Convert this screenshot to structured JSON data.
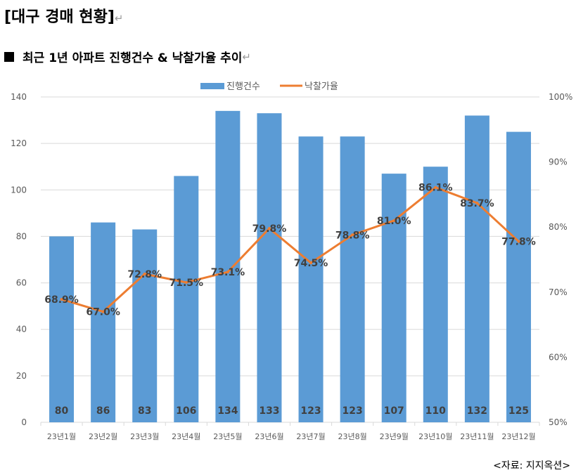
{
  "document": {
    "title": "[대구 경매 현황]",
    "title_mark": "↵",
    "heading": "최근 1년 아파트 진행건수 & 낙찰가율 추이",
    "heading_mark": "↵",
    "source": "<자료: 지지옥션>"
  },
  "colors": {
    "bar": "#5B9BD5",
    "line": "#ED7D31",
    "grid": "#D9D9D9",
    "label": "#404040"
  },
  "chart_data": {
    "type": "bar",
    "categories": [
      "23년1월",
      "23년2월",
      "23년3월",
      "23년4월",
      "23년5월",
      "23년6월",
      "23년7월",
      "23년8월",
      "23년9월",
      "23년10월",
      "23년11월",
      "23년12월"
    ],
    "series": [
      {
        "name": "진행건수",
        "type": "bar",
        "axis": "left",
        "values": [
          80,
          86,
          83,
          106,
          134,
          133,
          123,
          123,
          107,
          110,
          132,
          125
        ],
        "labels": [
          "80",
          "86",
          "83",
          "106",
          "134",
          "133",
          "123",
          "123",
          "107",
          "110",
          "132",
          "125"
        ]
      },
      {
        "name": "낙찰가율",
        "type": "line",
        "axis": "right",
        "values": [
          68.9,
          67.0,
          72.8,
          71.5,
          73.1,
          79.8,
          74.5,
          78.8,
          81.0,
          86.1,
          83.7,
          77.8
        ],
        "labels": [
          "68.9%",
          "67.0%",
          "72.8%",
          "71.5%",
          "73.1%",
          "79.8%",
          "74.5%",
          "78.8%",
          "81.0%",
          "86.1%",
          "83.7%",
          "77.8%"
        ]
      }
    ],
    "y_left": {
      "min": 0,
      "max": 140,
      "ticks": [
        "0",
        "20",
        "40",
        "60",
        "80",
        "100",
        "120",
        "140"
      ]
    },
    "y_right": {
      "min": 50,
      "max": 100,
      "ticks": [
        "50%",
        "60%",
        "70%",
        "80%",
        "90%",
        "100%"
      ]
    },
    "grid": true,
    "legend": {
      "position": "top",
      "entries": [
        "진행건수",
        "낙찰가율"
      ]
    }
  }
}
